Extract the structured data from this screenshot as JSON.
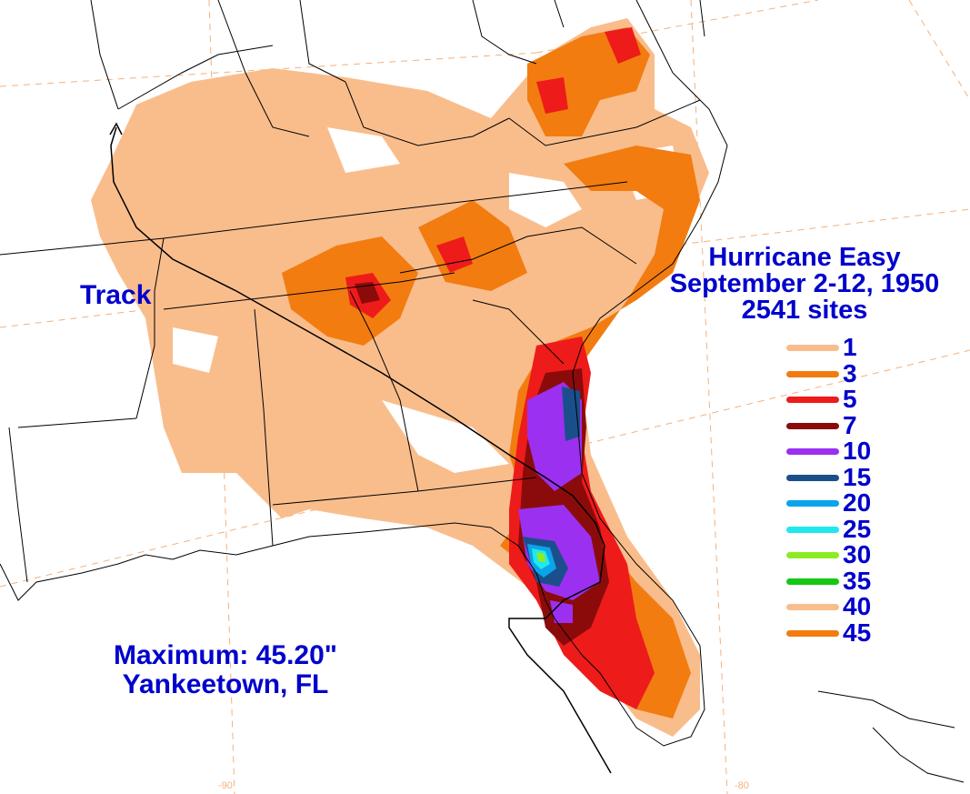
{
  "title": {
    "storm": "Hurricane Easy",
    "dates": "September 2-12, 1950",
    "sites": "2541 sites"
  },
  "track_label": "Track",
  "maximum": {
    "line1": "Maximum:  45.20\"",
    "line2": "Yankeetown, FL"
  },
  "longitude_labels": [
    "-90",
    "-80"
  ],
  "legend": {
    "items": [
      {
        "label": "1",
        "color": "#f9bd8c"
      },
      {
        "label": "3",
        "color": "#f27c10"
      },
      {
        "label": "5",
        "color": "#ee1b1b"
      },
      {
        "label": "7",
        "color": "#8b0b0b"
      },
      {
        "label": "10",
        "color": "#9b30f0"
      },
      {
        "label": "15",
        "color": "#1a4f8c"
      },
      {
        "label": "20",
        "color": "#0aa4e8"
      },
      {
        "label": "25",
        "color": "#20e8f0"
      },
      {
        "label": "30",
        "color": "#8cec24"
      },
      {
        "label": "35",
        "color": "#14c814"
      },
      {
        "label": "40",
        "color": "#f9bd8c"
      },
      {
        "label": "45",
        "color": "#f27c10"
      }
    ]
  },
  "colors": {
    "text": "#0000cc",
    "graticule": "#f4b07a",
    "borders": "#000000"
  }
}
